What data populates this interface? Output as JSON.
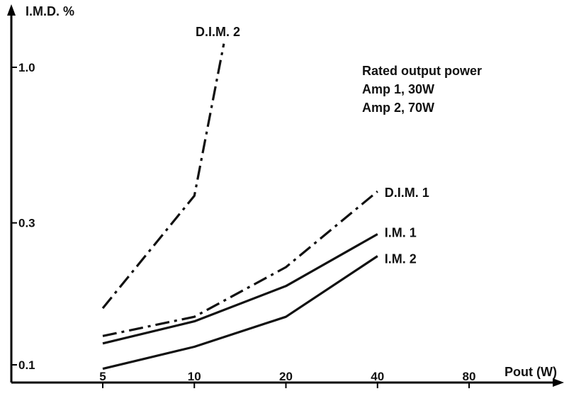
{
  "chart_data": {
    "type": "line",
    "title": "",
    "ylabel": "I.M.D. %",
    "xlabel": "Pout (W)",
    "x_scale": "log",
    "y_scale": "log",
    "x_ticks": [
      "5",
      "10",
      "20",
      "40",
      "80"
    ],
    "y_ticks": [
      "0.1",
      "0.3",
      "1.0"
    ],
    "xlim": [
      5,
      80
    ],
    "ylim": [
      0.1,
      1.0
    ],
    "grid": false,
    "legend": "none (series labelled at line ends)",
    "annotation": [
      "Rated output power",
      "Amp 1, 30W",
      "Amp 2, 70W"
    ],
    "series": [
      {
        "name": "D.I.M. 2",
        "style": "dash-dot",
        "x": [
          5,
          10,
          12.5
        ],
        "y": [
          0.155,
          0.37,
          1.2
        ]
      },
      {
        "name": "D.I.M. 1",
        "style": "dash-dot",
        "x": [
          5,
          10,
          20,
          40
        ],
        "y": [
          0.125,
          0.145,
          0.213,
          0.383
        ]
      },
      {
        "name": "I.M. 1",
        "style": "solid",
        "x": [
          5,
          10,
          20,
          40
        ],
        "y": [
          0.118,
          0.14,
          0.184,
          0.275
        ]
      },
      {
        "name": "I.M. 2",
        "style": "solid",
        "x": [
          5,
          10,
          20,
          40
        ],
        "y": [
          0.097,
          0.115,
          0.145,
          0.232
        ]
      }
    ]
  }
}
